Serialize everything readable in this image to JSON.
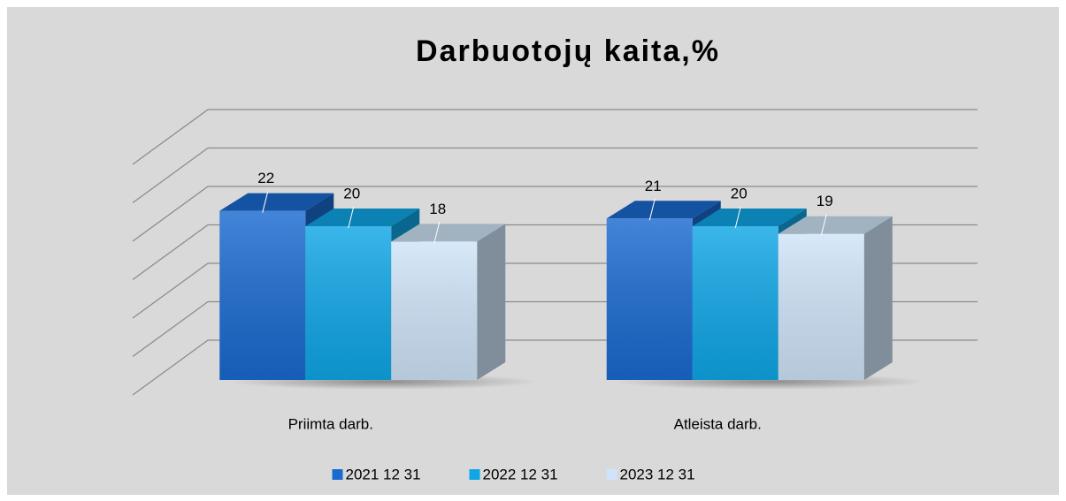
{
  "chart_data": {
    "type": "bar3d",
    "title": "Darbuotojų kaita,%",
    "categories": [
      "Priimta darb.",
      "Atleista darb."
    ],
    "series": [
      {
        "name": "2021 12 31",
        "color": "#1a6ad0",
        "values": [
          22,
          21
        ]
      },
      {
        "name": "2022 12 31",
        "color": "#0fa6e6",
        "values": [
          20,
          20
        ]
      },
      {
        "name": "2023 12 31",
        "color": "#cfe4f8",
        "values": [
          18,
          19
        ]
      }
    ],
    "ylim": [
      0,
      30
    ],
    "yticks": [
      0,
      5,
      10,
      15,
      20,
      25,
      30
    ],
    "grid": true,
    "legend": "bottom"
  }
}
